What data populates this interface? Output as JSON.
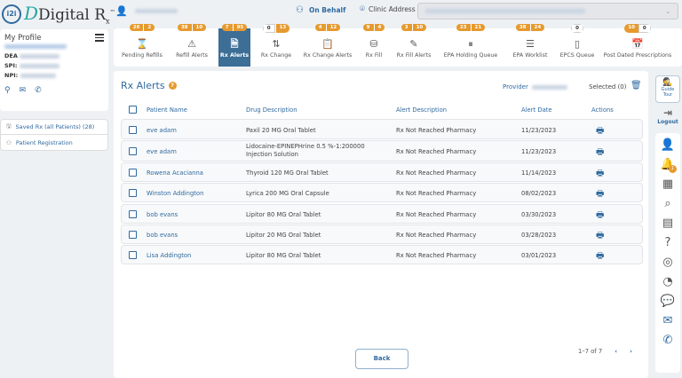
{
  "header": {
    "logo_text": "Digital R",
    "logo_sub": "x",
    "logo_tm": "™",
    "logo_mark": "i2i",
    "on_behalf_label": "On Behalf",
    "clinic_address_label": "Clinic Address"
  },
  "profile": {
    "title": "My Profile",
    "dea_label": "DEA",
    "spi_label": "SPI:",
    "npi_label": "NPI:"
  },
  "side_links": [
    {
      "label": "Saved Rx (all Patients) (28)",
      "icon": "floppy-icon"
    },
    {
      "label": "Patient Registration",
      "icon": "user-icon"
    }
  ],
  "tabs": [
    {
      "label": "Pending Refills",
      "badges": [
        "26",
        "2"
      ],
      "icon": "hourglass-icon"
    },
    {
      "label": "Refill Alerts",
      "badges": [
        "38",
        "10"
      ],
      "icon": "warning-icon"
    },
    {
      "label": "Rx Alerts",
      "badges": [
        "7",
        "95"
      ],
      "icon": "document-icon",
      "active": true
    },
    {
      "label": "Rx Change",
      "badges": [
        "0",
        "13"
      ],
      "icon": "arrows-updown-icon"
    },
    {
      "label": "Rx Change Alerts",
      "badges": [
        "4",
        "12"
      ],
      "icon": "clipboard-icon"
    },
    {
      "label": "Rx Fill",
      "badges": [
        "9",
        "4"
      ],
      "icon": "bottle-icon"
    },
    {
      "label": "Rx Fill Alerts",
      "badges": [
        "3",
        "10"
      ],
      "icon": "edit-doc-icon"
    },
    {
      "label": "EPA Holding Queue",
      "badges": [
        "23",
        "21"
      ],
      "icon": "pause-icon"
    },
    {
      "label": "EPA Worklist",
      "badges": [
        "38",
        "24"
      ],
      "icon": "list-icon"
    },
    {
      "label": "EPCS Queue",
      "badges": [
        "0"
      ],
      "icon": "tablet-icon"
    },
    {
      "label": "Post Dated Prescriptions",
      "badges": [
        "10",
        "0"
      ],
      "icon": "calendar-icon"
    }
  ],
  "main": {
    "title": "Rx Alerts",
    "provider_label": "Provider",
    "selected_label": "Selected (0)",
    "columns": [
      "Patient Name",
      "Drug Description",
      "Alert Description",
      "Alert Date",
      "Actions"
    ],
    "rows": [
      {
        "patient": "eve adam",
        "drug": "Paxil 20 MG Oral Tablet",
        "alert": "Rx Not Reached Pharmacy",
        "date": "11/23/2023"
      },
      {
        "patient": "eve adam",
        "drug": "Lidocaine-EPINEPHrine 0.5 %-1:200000 Injection Solution",
        "alert": "Rx Not Reached Pharmacy",
        "date": "11/23/2023"
      },
      {
        "patient": "Rowena Acacianna",
        "drug": "Thyroid 120 MG Oral Tablet",
        "alert": "Rx Not Reached Pharmacy",
        "date": "11/14/2023"
      },
      {
        "patient": "Winston Addington",
        "drug": "Lyrica 200 MG Oral Capsule",
        "alert": "Rx Not Reached Pharmacy",
        "date": "08/02/2023"
      },
      {
        "patient": "bob evans",
        "drug": "Lipitor 80 MG Oral Tablet",
        "alert": "Rx Not Reached Pharmacy",
        "date": "03/30/2023"
      },
      {
        "patient": "bob evans",
        "drug": "Lipitor 20 MG Oral Tablet",
        "alert": "Rx Not Reached Pharmacy",
        "date": "03/28/2023"
      },
      {
        "patient": "Lisa Addington",
        "drug": "Lipitor 80 MG Oral Tablet",
        "alert": "Rx Not Reached Pharmacy",
        "date": "03/01/2023"
      }
    ],
    "back_label": "Back",
    "pagination": "1–7 of 7"
  },
  "rail": {
    "guide_tour": "Guide Tour",
    "logout": "Logout",
    "notification_count": "1"
  },
  "colors": {
    "accent": "#2f6aa0",
    "active_tab": "#3d6e96",
    "badge": "#e69a2e"
  }
}
